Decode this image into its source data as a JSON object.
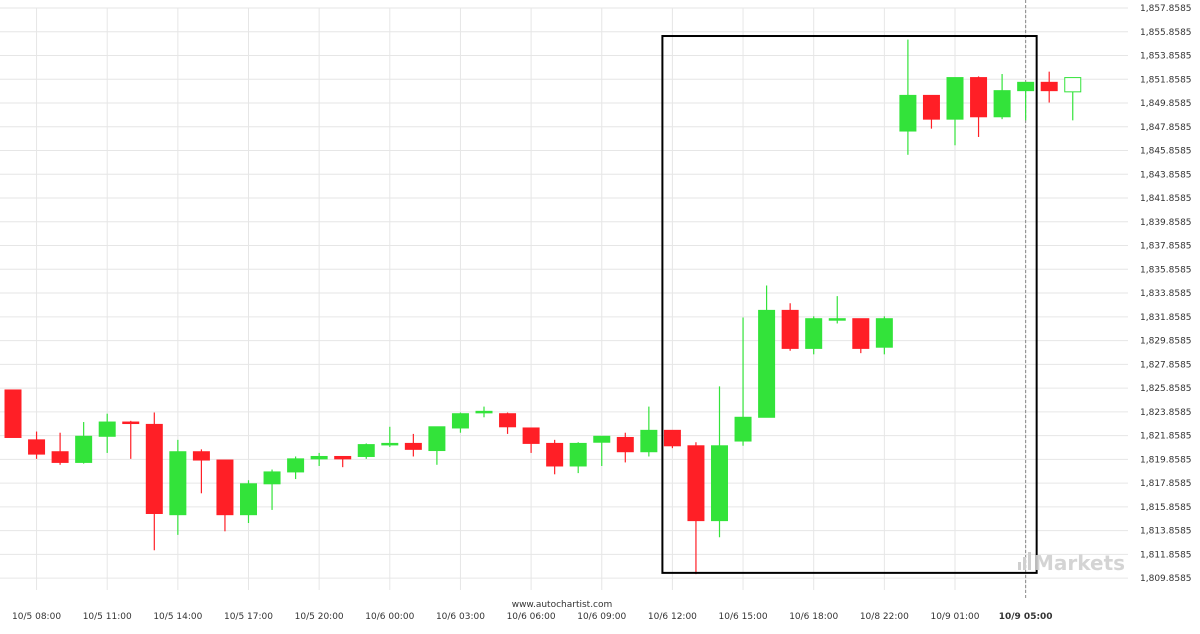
{
  "watermark_url": "www.autochartist.com",
  "brand": {
    "text": "Markets",
    "icon": "ic-markets-bars-icon"
  },
  "colors": {
    "bull": "#33e33a",
    "bear": "#ff1f26",
    "grid": "#e6e6e6",
    "box": "#000000",
    "text": "#333333"
  },
  "chart_data": {
    "type": "candlestick",
    "title": "",
    "xlabel": "",
    "ylabel": "",
    "ylim": [
      1808.8585,
      1857.8585
    ],
    "y_ticks": [
      "1,809.8585",
      "1,811.8585",
      "1,813.8585",
      "1,815.8585",
      "1,817.8585",
      "1,819.8585",
      "1,821.8585",
      "1,823.8585",
      "1,825.8585",
      "1,827.8585",
      "1,829.8585",
      "1,831.8585",
      "1,833.8585",
      "1,835.8585",
      "1,837.8585",
      "1,839.8585",
      "1,841.8585",
      "1,843.8585",
      "1,845.8585",
      "1,847.8585",
      "1,849.8585",
      "1,851.8585",
      "1,853.8585",
      "1,855.8585",
      "1,857.8585"
    ],
    "x_ticks": [
      {
        "label": "10/5 08:00",
        "index": 1
      },
      {
        "label": "10/5 11:00",
        "index": 4
      },
      {
        "label": "10/5 14:00",
        "index": 7
      },
      {
        "label": "10/5 17:00",
        "index": 10
      },
      {
        "label": "10/5 20:00",
        "index": 13
      },
      {
        "label": "10/6 00:00",
        "index": 16
      },
      {
        "label": "10/6 03:00",
        "index": 19
      },
      {
        "label": "10/6 06:00",
        "index": 22
      },
      {
        "label": "10/6 09:00",
        "index": 25
      },
      {
        "label": "10/6 12:00",
        "index": 28
      },
      {
        "label": "10/6 15:00",
        "index": 31
      },
      {
        "label": "10/6 18:00",
        "index": 34
      },
      {
        "label": "10/8 22:00",
        "index": 37
      },
      {
        "label": "10/9 01:00",
        "index": 40
      },
      {
        "label": "10/9 05:00",
        "index": 43,
        "bold": true
      }
    ],
    "highlight_box": {
      "from_index": 28,
      "to_index": 43,
      "low": 1810.3,
      "high": 1855.5
    },
    "current_marker_index": 43,
    "candles": [
      {
        "o": 1825.7,
        "h": 1825.7,
        "l": 1821.7,
        "c": 1821.7
      },
      {
        "o": 1821.5,
        "h": 1822.2,
        "l": 1819.9,
        "c": 1820.3
      },
      {
        "o": 1820.5,
        "h": 1822.1,
        "l": 1819.4,
        "c": 1819.6
      },
      {
        "o": 1819.6,
        "h": 1823.0,
        "l": 1819.5,
        "c": 1821.8
      },
      {
        "o": 1821.8,
        "h": 1823.7,
        "l": 1820.4,
        "c": 1823.0
      },
      {
        "o": 1823.0,
        "h": 1823.1,
        "l": 1819.9,
        "c": 1822.9
      },
      {
        "o": 1822.8,
        "h": 1823.8,
        "l": 1812.2,
        "c": 1815.3
      },
      {
        "o": 1815.2,
        "h": 1821.5,
        "l": 1813.5,
        "c": 1820.5
      },
      {
        "o": 1820.5,
        "h": 1820.7,
        "l": 1817.0,
        "c": 1819.8
      },
      {
        "o": 1819.8,
        "h": 1819.8,
        "l": 1813.8,
        "c": 1815.2
      },
      {
        "o": 1815.2,
        "h": 1818.1,
        "l": 1814.5,
        "c": 1817.8
      },
      {
        "o": 1817.8,
        "h": 1819.0,
        "l": 1815.6,
        "c": 1818.8
      },
      {
        "o": 1818.8,
        "h": 1820.1,
        "l": 1818.2,
        "c": 1819.9
      },
      {
        "o": 1819.9,
        "h": 1820.4,
        "l": 1819.3,
        "c": 1820.1
      },
      {
        "o": 1820.1,
        "h": 1820.1,
        "l": 1819.2,
        "c": 1819.9
      },
      {
        "o": 1820.1,
        "h": 1821.2,
        "l": 1819.9,
        "c": 1821.1
      },
      {
        "o": 1821.1,
        "h": 1822.6,
        "l": 1820.9,
        "c": 1821.2
      },
      {
        "o": 1821.2,
        "h": 1822.0,
        "l": 1820.1,
        "c": 1820.7
      },
      {
        "o": 1820.6,
        "h": 1822.6,
        "l": 1819.4,
        "c": 1822.6
      },
      {
        "o": 1822.5,
        "h": 1823.8,
        "l": 1822.1,
        "c": 1823.7
      },
      {
        "o": 1823.8,
        "h": 1824.3,
        "l": 1823.4,
        "c": 1823.9
      },
      {
        "o": 1823.7,
        "h": 1823.8,
        "l": 1822.0,
        "c": 1822.6
      },
      {
        "o": 1822.5,
        "h": 1822.5,
        "l": 1820.4,
        "c": 1821.2
      },
      {
        "o": 1821.2,
        "h": 1821.5,
        "l": 1818.6,
        "c": 1819.3
      },
      {
        "o": 1819.3,
        "h": 1821.3,
        "l": 1818.7,
        "c": 1821.2
      },
      {
        "o": 1821.3,
        "h": 1821.7,
        "l": 1819.3,
        "c": 1821.8
      },
      {
        "o": 1821.7,
        "h": 1822.1,
        "l": 1819.6,
        "c": 1820.5
      },
      {
        "o": 1820.5,
        "h": 1824.3,
        "l": 1820.1,
        "c": 1822.3
      },
      {
        "o": 1822.3,
        "h": 1822.3,
        "l": 1820.8,
        "c": 1821.0
      },
      {
        "o": 1821.0,
        "h": 1821.3,
        "l": 1810.2,
        "c": 1814.7
      },
      {
        "o": 1814.7,
        "h": 1826.0,
        "l": 1813.3,
        "c": 1821.0
      },
      {
        "o": 1821.4,
        "h": 1831.8,
        "l": 1821.0,
        "c": 1823.4
      },
      {
        "o": 1823.4,
        "h": 1834.5,
        "l": 1823.4,
        "c": 1832.4
      },
      {
        "o": 1832.4,
        "h": 1833.0,
        "l": 1829.0,
        "c": 1829.2
      },
      {
        "o": 1829.2,
        "h": 1831.9,
        "l": 1828.7,
        "c": 1831.7
      },
      {
        "o": 1831.7,
        "h": 1833.6,
        "l": 1831.3,
        "c": 1831.7
      },
      {
        "o": 1831.7,
        "h": 1831.7,
        "l": 1828.8,
        "c": 1829.2
      },
      {
        "o": 1829.3,
        "h": 1831.9,
        "l": 1828.7,
        "c": 1831.7
      },
      {
        "o": 1847.5,
        "h": 1855.2,
        "l": 1845.5,
        "c": 1850.5
      },
      {
        "o": 1850.5,
        "h": 1850.5,
        "l": 1847.7,
        "c": 1848.5
      },
      {
        "o": 1848.5,
        "h": 1852.0,
        "l": 1846.3,
        "c": 1852.0
      },
      {
        "o": 1852.0,
        "h": 1852.1,
        "l": 1847.0,
        "c": 1848.7
      },
      {
        "o": 1848.7,
        "h": 1852.3,
        "l": 1848.5,
        "c": 1850.9
      },
      {
        "o": 1850.9,
        "h": 1851.3,
        "l": 1848.4,
        "c": 1851.6
      },
      {
        "o": 1851.6,
        "h": 1852.5,
        "l": 1849.9,
        "c": 1850.9
      },
      {
        "o": 1850.8,
        "h": 1852.0,
        "l": 1848.4,
        "c": 1852.0
      }
    ]
  }
}
